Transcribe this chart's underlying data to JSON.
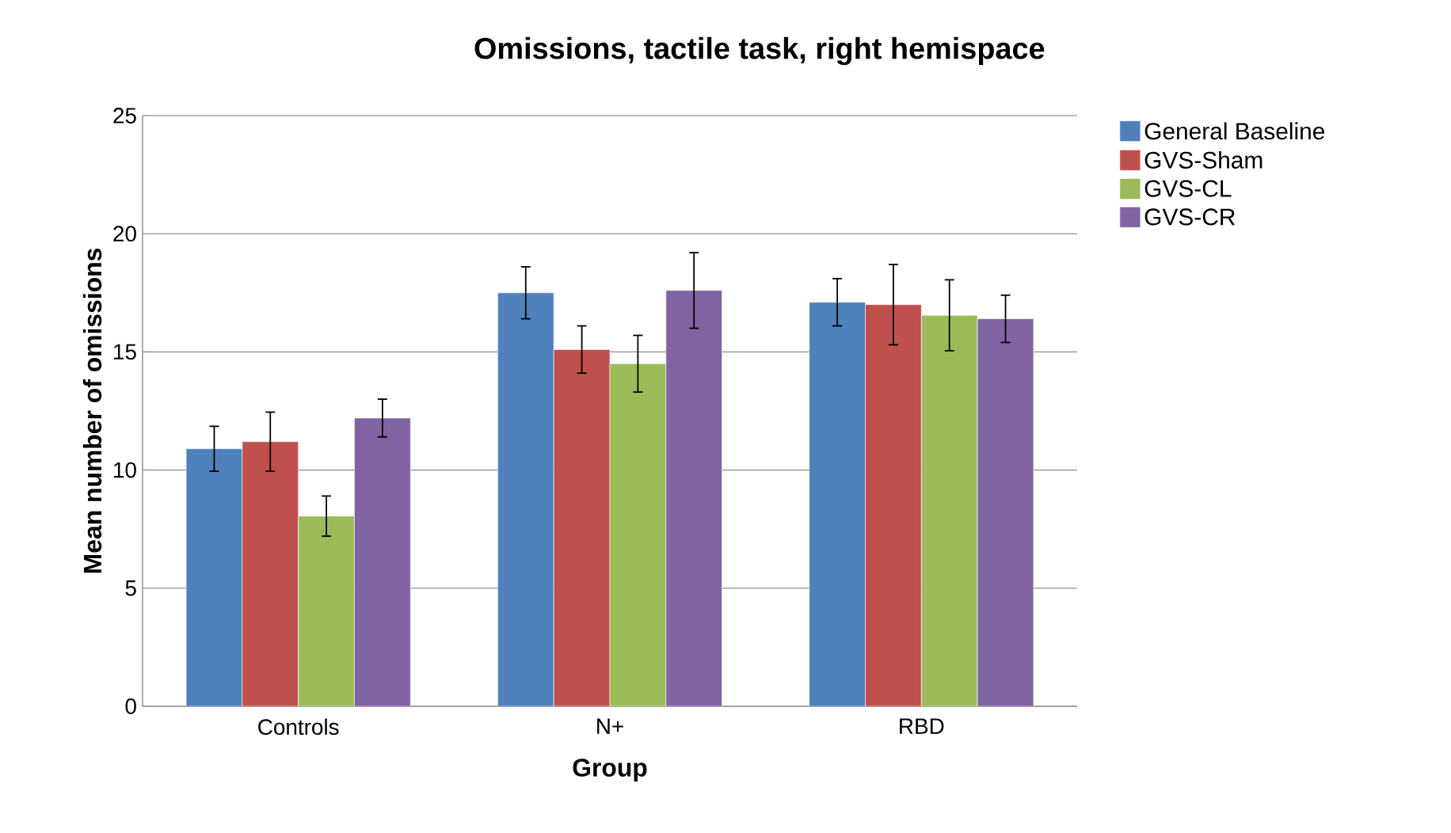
{
  "chart_data": {
    "type": "bar",
    "title": "Omissions, tactile task, right hemispace",
    "xlabel": "Group",
    "ylabel": "Mean number of omissions",
    "categories": [
      "Controls",
      "N+",
      "RBD"
    ],
    "series": [
      {
        "name": "General Baseline",
        "color": "#4f81bd",
        "values": [
          10.9,
          17.5,
          17.1
        ],
        "errors": [
          0.95,
          1.1,
          1.0
        ]
      },
      {
        "name": "GVS-Sham",
        "color": "#c0504d",
        "values": [
          11.2,
          15.1,
          17.0
        ],
        "errors": [
          1.25,
          1.0,
          1.7
        ]
      },
      {
        "name": "GVS-CL",
        "color": "#9bbb59",
        "values": [
          8.05,
          14.5,
          16.55
        ],
        "errors": [
          0.85,
          1.2,
          1.5
        ]
      },
      {
        "name": "GVS-CR",
        "color": "#8064a2",
        "values": [
          12.2,
          17.6,
          16.4
        ],
        "errors": [
          0.8,
          1.6,
          1.0
        ]
      }
    ],
    "ylim": [
      0,
      25
    ],
    "yticks": [
      0,
      5,
      10,
      15,
      20,
      25
    ],
    "grid": "y",
    "legend": "right"
  }
}
